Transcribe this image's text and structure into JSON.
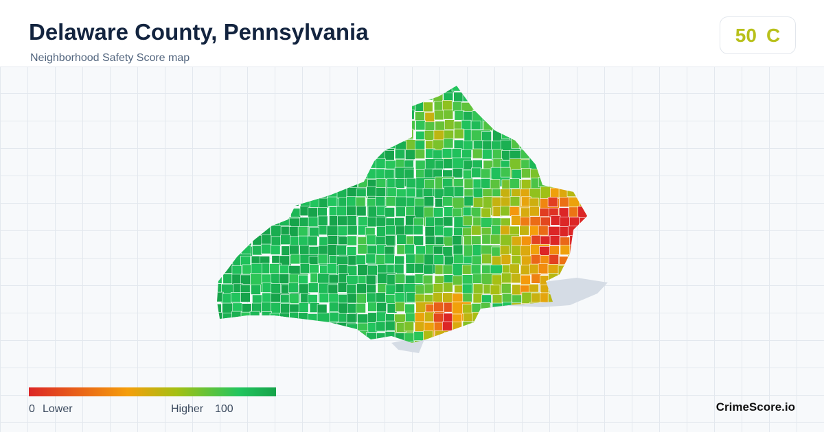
{
  "header": {
    "title": "Delaware County, Pennsylvania",
    "subtitle": "Neighborhood Safety Score map"
  },
  "badge": {
    "score": "50",
    "grade": "C"
  },
  "legend": {
    "min": "0",
    "min_label": "Lower",
    "max_label": "Higher",
    "max": "100"
  },
  "brand": "CrimeScore.io"
}
